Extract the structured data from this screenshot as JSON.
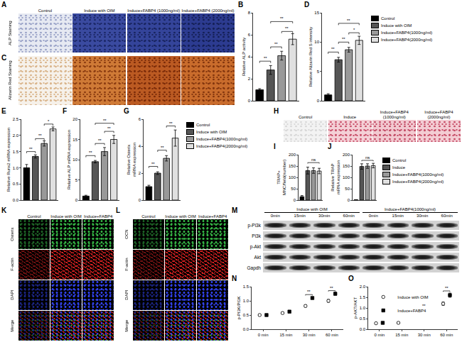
{
  "chart_data": [
    {
      "panel": "B",
      "type": "bar",
      "y_label": "Relative ALP activity",
      "categories": [
        "Control",
        "Induce with OIM",
        "Induce+FABP4(1000ng/ml)",
        "Induce+FABP4(2000ng/ml)"
      ],
      "values": [
        1.0,
        2.8,
        4.1,
        5.6
      ],
      "errors": [
        0.1,
        0.4,
        0.4,
        0.5
      ],
      "colors": [
        "#000000",
        "#555555",
        "#999999",
        "#e0e0e0"
      ],
      "ylim": [
        0,
        8
      ],
      "yticks": [
        0,
        2,
        4,
        6,
        8
      ],
      "grid": false,
      "tick_labels": "y",
      "significance": [
        {
          "between": [
            0,
            1
          ],
          "y": 3.6,
          "label": "**"
        },
        {
          "between": [
            1,
            2
          ],
          "y": 4.9,
          "label": "**"
        },
        {
          "between": [
            2,
            3
          ],
          "y": 6.3,
          "label": "**"
        },
        {
          "between": [
            1,
            3
          ],
          "y": 7.2,
          "label": "**"
        }
      ]
    },
    {
      "panel": "D",
      "type": "bar",
      "y_label": "Relative Alizarin Red S intensity",
      "categories": [
        "Control",
        "Induce with OIM",
        "Induce+FABP4(1000ng/ml)",
        "Induce+FABP4(2000ng/ml)"
      ],
      "values": [
        1.0,
        7.0,
        8.7,
        10.3
      ],
      "errors": [
        0.2,
        0.4,
        0.4,
        0.7
      ],
      "colors": [
        "#000000",
        "#555555",
        "#999999",
        "#e0e0e0"
      ],
      "ylim": [
        0,
        15
      ],
      "yticks": [
        0,
        5,
        10,
        15
      ],
      "grid": false,
      "tick_labels": "y",
      "legend": "right",
      "significance": [
        {
          "between": [
            0,
            1
          ],
          "y": 8.3,
          "label": "**"
        },
        {
          "between": [
            1,
            2
          ],
          "y": 10,
          "label": "**"
        },
        {
          "between": [
            2,
            3
          ],
          "y": 11.6,
          "label": "*"
        },
        {
          "between": [
            1,
            3
          ],
          "y": 13.2,
          "label": "**"
        }
      ]
    },
    {
      "panel": "E",
      "type": "bar",
      "y_label": "Relative Runx2 mRNA expression",
      "categories": [
        "Control",
        "Induce with OIM",
        "Induce+FABP4(1000ng/ml)",
        "Induce+FABP4(2000ng/ml)"
      ],
      "values": [
        1.0,
        1.35,
        1.75,
        2.2
      ],
      "errors": [
        0.1,
        0.05,
        0.08,
        0.06
      ],
      "colors": [
        "#000000",
        "#555555",
        "#999999",
        "#e0e0e0"
      ],
      "ylim": [
        0,
        2.5
      ],
      "yticks": [
        {
          "value": 0,
          "label": "0.0"
        },
        0.5,
        {
          "value": 1,
          "label": "1.0"
        },
        1.5,
        {
          "value": 2,
          "label": "2.0"
        },
        2.5
      ],
      "grid": false,
      "tick_labels": "y",
      "significance": [
        {
          "between": [
            0,
            1
          ],
          "y": 1.5,
          "label": "**"
        },
        {
          "between": [
            1,
            2
          ],
          "y": 1.9,
          "label": "**"
        },
        {
          "between": [
            2,
            3
          ],
          "y": 2.35,
          "label": "*"
        }
      ]
    },
    {
      "panel": "F",
      "type": "bar",
      "y_label": "Relative ALP mRNA expression",
      "categories": [
        "Control",
        "Induce with OIM",
        "Induce+FABP4(1000ng/ml)",
        "Induce+FABP4(2000ng/ml)"
      ],
      "values": [
        1.0,
        9.5,
        12,
        15
      ],
      "errors": [
        0.2,
        0.3,
        1.0,
        1.0
      ],
      "colors": [
        "#000000",
        "#555555",
        "#999999",
        "#e0e0e0"
      ],
      "ylim": [
        0,
        20
      ],
      "yticks": [
        0,
        5,
        10,
        15,
        20
      ],
      "grid": false,
      "tick_labels": "y",
      "significance": [
        {
          "between": [
            0,
            1
          ],
          "y": 11,
          "label": "**"
        },
        {
          "between": [
            1,
            2
          ],
          "y": 14,
          "label": "**"
        },
        {
          "between": [
            2,
            3
          ],
          "y": 17,
          "label": "**"
        },
        {
          "between": [
            1,
            3
          ],
          "y": 19,
          "label": "**"
        }
      ]
    },
    {
      "panel": "G",
      "type": "bar",
      "y_label": "Relative Osterix mRNA expression",
      "categories": [
        "Control",
        "Induce with OIM",
        "Induce+FABP4(1000ng/ml)",
        "Induce+FABP4(2000ng/ml)"
      ],
      "values": [
        1.0,
        2.0,
        3.1,
        4.6
      ],
      "errors": [
        0.1,
        0.1,
        0.2,
        0.6
      ],
      "colors": [
        "#000000",
        "#555555",
        "#999999",
        "#e0e0e0"
      ],
      "ylim": [
        0,
        6
      ],
      "yticks": [
        0,
        2,
        4,
        6
      ],
      "grid": false,
      "tick_labels": "y",
      "legend": "right",
      "significance": [
        {
          "between": [
            0,
            1
          ],
          "y": 2.5,
          "label": "**"
        },
        {
          "between": [
            1,
            2
          ],
          "y": 3.7,
          "label": "**"
        },
        {
          "between": [
            2,
            3
          ],
          "y": 5.5,
          "label": "**"
        }
      ]
    },
    {
      "panel": "I",
      "type": "bar",
      "y_label": "TRAP+ MNC/field(number)",
      "categories": [
        "Control",
        "Induce",
        "Induce+FABP4(1000ng/ml)",
        "Induce+FABP4(2000ng/ml)"
      ],
      "values": [
        15,
        130,
        130,
        128
      ],
      "errors": [
        5,
        15,
        12,
        12
      ],
      "colors": [
        "#000000",
        "#555555",
        "#999999",
        "#e0e0e0"
      ],
      "ylim": [
        0,
        200
      ],
      "yticks": [
        0,
        50,
        100,
        150,
        200
      ],
      "grid": false,
      "tick_labels": "y",
      "significance": [
        {
          "between": [
            1,
            3
          ],
          "y": 165,
          "label": "ns"
        }
      ]
    },
    {
      "panel": "J",
      "type": "bar",
      "y_label": "Relative TRAP mRNA expression",
      "categories": [
        "Control",
        "Induce",
        "Induce+FABP4(1000ng/ml)",
        "Induce+FABP4(2000ng/ml)"
      ],
      "values": [
        1,
        148,
        150,
        152
      ],
      "errors": [
        0.5,
        12,
        10,
        10
      ],
      "colors": [
        "#000000",
        "#555555",
        "#999999",
        "#e0e0e0"
      ],
      "ylim": [
        0,
        200
      ],
      "yticks": [
        0,
        50,
        100,
        150,
        200
      ],
      "grid": false,
      "tick_labels": "y",
      "legend": "right",
      "significance": [
        {
          "between": [
            1,
            3
          ],
          "y": 175,
          "label": "ns"
        }
      ]
    },
    {
      "panel": "N",
      "type": "scatter",
      "y_label": "p-PI3K/PI3K",
      "categories": [
        "0 min",
        "15 min",
        "30 min",
        "60 min"
      ],
      "series": [
        {
          "name": "Induce with OIM",
          "color": "#ffffff",
          "marker": "circle",
          "values": [
            0.5,
            0.57,
            0.82,
            1.0
          ],
          "errors": [
            0.03,
            0.03,
            0.04,
            0.05
          ]
        },
        {
          "name": "Induce+FABP4",
          "color": "#000000",
          "marker": "square",
          "values": [
            0.5,
            0.62,
            1.1,
            1.25
          ],
          "errors": [
            0.03,
            0.03,
            0.04,
            0.05
          ]
        }
      ],
      "ylim": [
        0,
        1.5
      ],
      "yticks": [
        {
          "value": 0,
          "label": "0.0"
        },
        0.5,
        {
          "value": 1,
          "label": "1.0"
        },
        1.5
      ],
      "grid": false,
      "significance": [
        {
          "category": 2,
          "y": 1.22,
          "label": "**"
        },
        {
          "category": 3,
          "y": 1.36,
          "label": "**"
        }
      ]
    },
    {
      "panel": "O",
      "type": "scatter",
      "y_label": "p-AKT/AKT",
      "categories": [
        "0 min",
        "15 min",
        "30 min",
        "60 min"
      ],
      "series": [
        {
          "name": "Induce with OIM",
          "color": "#ffffff",
          "marker": "circle",
          "values": [
            0.28,
            0.3,
            0.6,
            1.2
          ],
          "errors": [
            0.03,
            0.03,
            0.05,
            0.08
          ]
        },
        {
          "name": "Induce+FABP4",
          "color": "#000000",
          "marker": "square",
          "values": [
            0.3,
            0.5,
            0.85,
            1.6
          ],
          "errors": [
            0.03,
            0.05,
            0.05,
            0.1
          ]
        }
      ],
      "ylim": [
        0,
        2
      ],
      "yticks": [
        {
          "value": 0,
          "label": "0.0"
        },
        0.5,
        {
          "value": 1,
          "label": "1.0"
        },
        1.5,
        {
          "value": 2,
          "label": "2.0"
        }
      ],
      "grid": false,
      "legend": "upper left",
      "significance": [
        {
          "category": 2,
          "y": 0.96,
          "label": "**"
        },
        {
          "category": 3,
          "y": 1.8,
          "label": "**"
        }
      ]
    }
  ],
  "image_panels": [
    {
      "panel": "A",
      "row_label": "ALP Staining",
      "columns": [
        "Control",
        "Induce with OIM",
        "Induce+FABP4 (1000ng/ml)",
        "Induce+FABP4 (2000ng/ml)"
      ]
    },
    {
      "panel": "C",
      "row_label": "Alizarin Red Staining"
    },
    {
      "panel": "H",
      "columns": [
        "Control",
        "Induce",
        "Induce+FABP4(1000ng/ml)",
        "Induce+FABP4(2000ng/ml)"
      ]
    },
    {
      "panel": "K",
      "columns": [
        "Control",
        "Induce with OIM",
        "Induce+FABP4"
      ],
      "rows": [
        "Osterix",
        "F-actin",
        "DAPI",
        "Merge"
      ]
    },
    {
      "panel": "L",
      "columns": [
        "Control",
        "Induce with OIM",
        "Induce+FABP4"
      ],
      "rows": [
        "OCN",
        "F-actin",
        "DAPI",
        "Merge"
      ]
    }
  ],
  "blot": {
    "panel": "M",
    "rows": [
      "p-Pi3k",
      "Pi3k",
      "p-Akt",
      "Akt",
      "Gapdh"
    ],
    "groups": [
      {
        "label": "Induce with OIM",
        "times": [
          "0min",
          "15min",
          "30min",
          "60min"
        ]
      },
      {
        "label": "Induce+FABP4(1000ng/ml)",
        "times": [
          "0min",
          "15min",
          "30min",
          "60min"
        ]
      }
    ]
  }
}
